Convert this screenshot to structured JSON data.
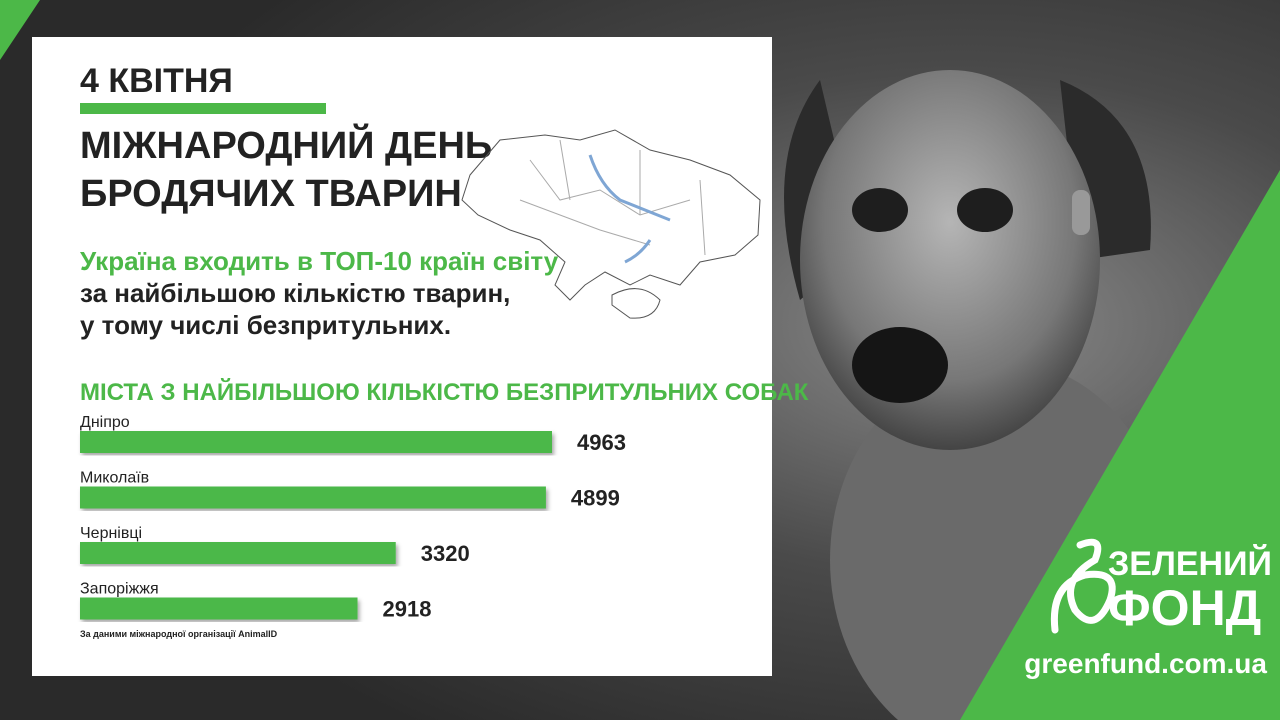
{
  "date": "4 КВІТНЯ",
  "title_lines": [
    "МІЖНАРОДНИЙ ДЕНЬ",
    "БРОДЯЧИХ ТВАРИН"
  ],
  "highlight": "Україна входить в ТОП-10 країн світу",
  "text_lines": [
    "за найбільшою кількістю тварин,",
    "у тому числі безпритульних."
  ],
  "chart_data": {
    "type": "bar",
    "orientation": "horizontal",
    "title": "МІСТА З НАЙБІЛЬШОЮ КІЛЬКІСТЮ БЕЗПРИТУЛЬНИХ СОБАК",
    "categories": [
      "Дніпро",
      "Миколаїв",
      "Чернівці",
      "Запоріжжя"
    ],
    "values": [
      4963,
      4899,
      3320,
      2918
    ],
    "color": "#4cb848",
    "source": "За даними міжнародної організації AnimalID"
  },
  "logo": {
    "line1": "ЗЕЛЕНИЙ",
    "line2": "ФОНД"
  },
  "website": "greenfund.com.ua"
}
